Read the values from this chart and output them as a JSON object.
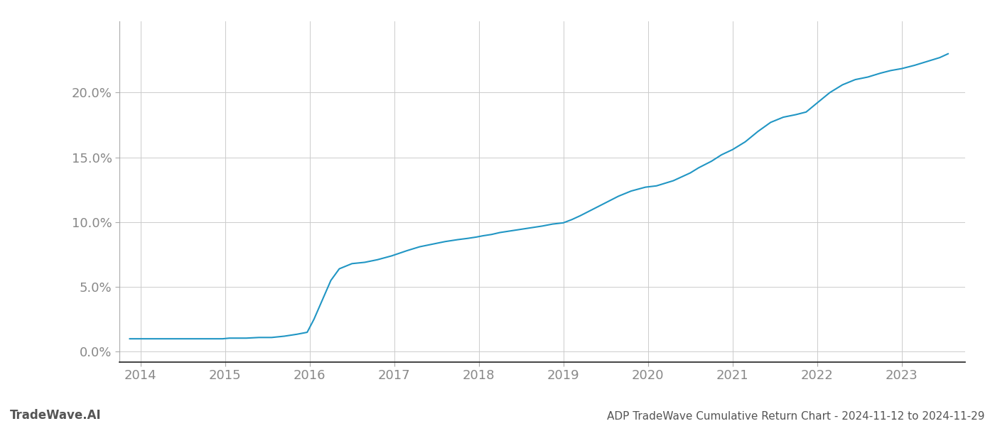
{
  "title": "ADP TradeWave Cumulative Return Chart - 2024-11-12 to 2024-11-29",
  "watermark": "TradeWave.AI",
  "line_color": "#2196c4",
  "background_color": "#ffffff",
  "grid_color": "#cccccc",
  "x_years": [
    2014,
    2015,
    2016,
    2017,
    2018,
    2019,
    2020,
    2021,
    2022,
    2023
  ],
  "x_values": [
    2013.87,
    2013.92,
    2013.97,
    2014.02,
    2014.07,
    2014.12,
    2014.17,
    2014.22,
    2014.3,
    2014.4,
    2014.5,
    2014.6,
    2014.7,
    2014.8,
    2014.87,
    2014.92,
    2014.97,
    2015.05,
    2015.15,
    2015.25,
    2015.4,
    2015.55,
    2015.7,
    2015.85,
    2015.97,
    2016.05,
    2016.15,
    2016.25,
    2016.35,
    2016.5,
    2016.65,
    2016.8,
    2016.97,
    2017.15,
    2017.3,
    2017.45,
    2017.6,
    2017.75,
    2017.87,
    2017.97,
    2018.05,
    2018.15,
    2018.25,
    2018.35,
    2018.45,
    2018.55,
    2018.65,
    2018.75,
    2018.87,
    2019.0,
    2019.1,
    2019.2,
    2019.35,
    2019.5,
    2019.65,
    2019.8,
    2019.97,
    2020.1,
    2020.2,
    2020.3,
    2020.4,
    2020.5,
    2020.6,
    2020.75,
    2020.87,
    2021.0,
    2021.15,
    2021.3,
    2021.45,
    2021.6,
    2021.75,
    2021.87,
    2022.0,
    2022.15,
    2022.3,
    2022.45,
    2022.6,
    2022.75,
    2022.87,
    2023.0,
    2023.15,
    2023.3,
    2023.45,
    2023.55
  ],
  "y_values": [
    1.0,
    1.0,
    1.0,
    1.0,
    1.0,
    1.0,
    1.0,
    1.0,
    1.0,
    1.0,
    1.0,
    1.0,
    1.0,
    1.0,
    1.0,
    1.0,
    1.0,
    1.05,
    1.05,
    1.05,
    1.1,
    1.1,
    1.2,
    1.35,
    1.5,
    2.5,
    4.0,
    5.5,
    6.4,
    6.8,
    6.9,
    7.1,
    7.4,
    7.8,
    8.1,
    8.3,
    8.5,
    8.65,
    8.75,
    8.85,
    8.95,
    9.05,
    9.2,
    9.3,
    9.4,
    9.5,
    9.6,
    9.7,
    9.85,
    9.95,
    10.2,
    10.5,
    11.0,
    11.5,
    12.0,
    12.4,
    12.7,
    12.8,
    13.0,
    13.2,
    13.5,
    13.8,
    14.2,
    14.7,
    15.2,
    15.6,
    16.2,
    17.0,
    17.7,
    18.1,
    18.3,
    18.5,
    19.2,
    20.0,
    20.6,
    21.0,
    21.2,
    21.5,
    21.7,
    21.85,
    22.1,
    22.4,
    22.7,
    23.0
  ],
  "yticks": [
    0.0,
    5.0,
    10.0,
    15.0,
    20.0
  ],
  "ylim": [
    -0.8,
    25.5
  ],
  "xlim": [
    2013.75,
    2023.75
  ],
  "tick_fontsize": 13,
  "title_fontsize": 11,
  "watermark_fontsize": 12
}
